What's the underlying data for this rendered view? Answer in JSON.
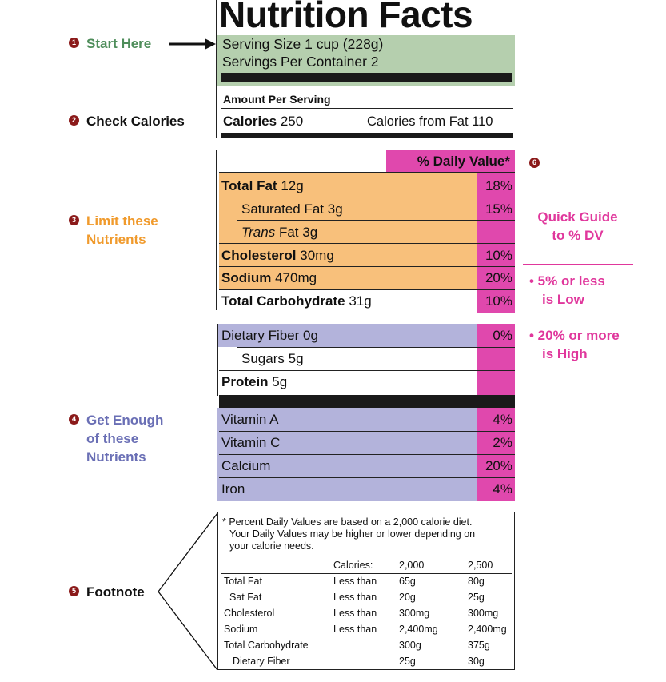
{
  "colors": {
    "green": "#b5cfae",
    "orange": "#f8c07b",
    "purple": "#b3b3db",
    "pink": "#e048ad",
    "accent_green": "#4e8d5a",
    "accent_orange": "#f09a2c",
    "accent_purple": "#6a6fb5",
    "accent_pink": "#e0379c",
    "badge": "#8b1a1a"
  },
  "label": {
    "title": "Nutrition Facts",
    "serving_size": "Serving Size 1 cup (228g)",
    "servings_per_container": "Servings Per Container 2",
    "amount_per_serving": "Amount Per Serving",
    "calories_label": "Calories",
    "calories_value": "250",
    "calories_from_fat": "Calories from Fat 110",
    "dv_header": "% Daily Value*",
    "limit_rows": [
      {
        "name": "Total Fat",
        "amount": "12g",
        "pct": "18%"
      },
      {
        "name": "Saturated Fat",
        "amount": "3g",
        "pct": "15%"
      },
      {
        "name": "Trans",
        "name_rest": "Fat",
        "amount": "3g",
        "pct": ""
      },
      {
        "name": "Cholesterol",
        "amount": "30mg",
        "pct": "10%"
      },
      {
        "name": "Sodium",
        "amount": "470mg",
        "pct": "20%"
      },
      {
        "name": "Total Carbohydrate",
        "amount": "31g",
        "pct": "10%"
      }
    ],
    "carb_rows": [
      {
        "name": "Dietary Fiber",
        "amount": "0g",
        "pct": "0%"
      },
      {
        "name": "Sugars",
        "amount": "5g",
        "pct": ""
      },
      {
        "name": "Protein",
        "amount": "5g",
        "pct": ""
      }
    ],
    "vitamin_rows": [
      {
        "name": "Vitamin A",
        "pct": "4%"
      },
      {
        "name": "Vitamin C",
        "pct": "2%"
      },
      {
        "name": "Calcium",
        "pct": "20%"
      },
      {
        "name": "Iron",
        "pct": "4%"
      }
    ],
    "footnote": {
      "line1": "* Percent Daily Values are based on a 2,000 calorie diet.",
      "line2": "Your Daily Values may be higher or lower depending on",
      "line3": "your calorie needs.",
      "header": [
        "",
        "Calories:",
        "2,000",
        "2,500"
      ],
      "rows": [
        [
          "Total Fat",
          "Less than",
          "65g",
          "80g"
        ],
        [
          "Sat Fat",
          "Less than",
          "20g",
          "25g"
        ],
        [
          "Cholesterol",
          "Less than",
          "300mg",
          "300mg"
        ],
        [
          "Sodium",
          "Less than",
          "2,400mg",
          "2,400mg"
        ],
        [
          "Total Carbohydrate",
          "",
          "300g",
          "375g"
        ],
        [
          "Dietary Fiber",
          "",
          "25g",
          "30g"
        ]
      ]
    }
  },
  "callouts": {
    "start_num": "1",
    "start": "Start Here",
    "calories_num": "2",
    "calories": "Check Calories",
    "limit_num": "3",
    "limit_1": "Limit these",
    "limit_2": "Nutrients",
    "enough_num": "4",
    "enough_1": "Get Enough",
    "enough_2": "of these",
    "enough_3": "Nutrients",
    "footnote_num": "5",
    "footnote": "Footnote",
    "guide_num": "6",
    "guide_1": "Quick Guide",
    "guide_2": "to % DV",
    "low_1": "• 5% or less",
    "low_2": "is Low",
    "high_1": "• 20% or more",
    "high_2": "is High"
  }
}
